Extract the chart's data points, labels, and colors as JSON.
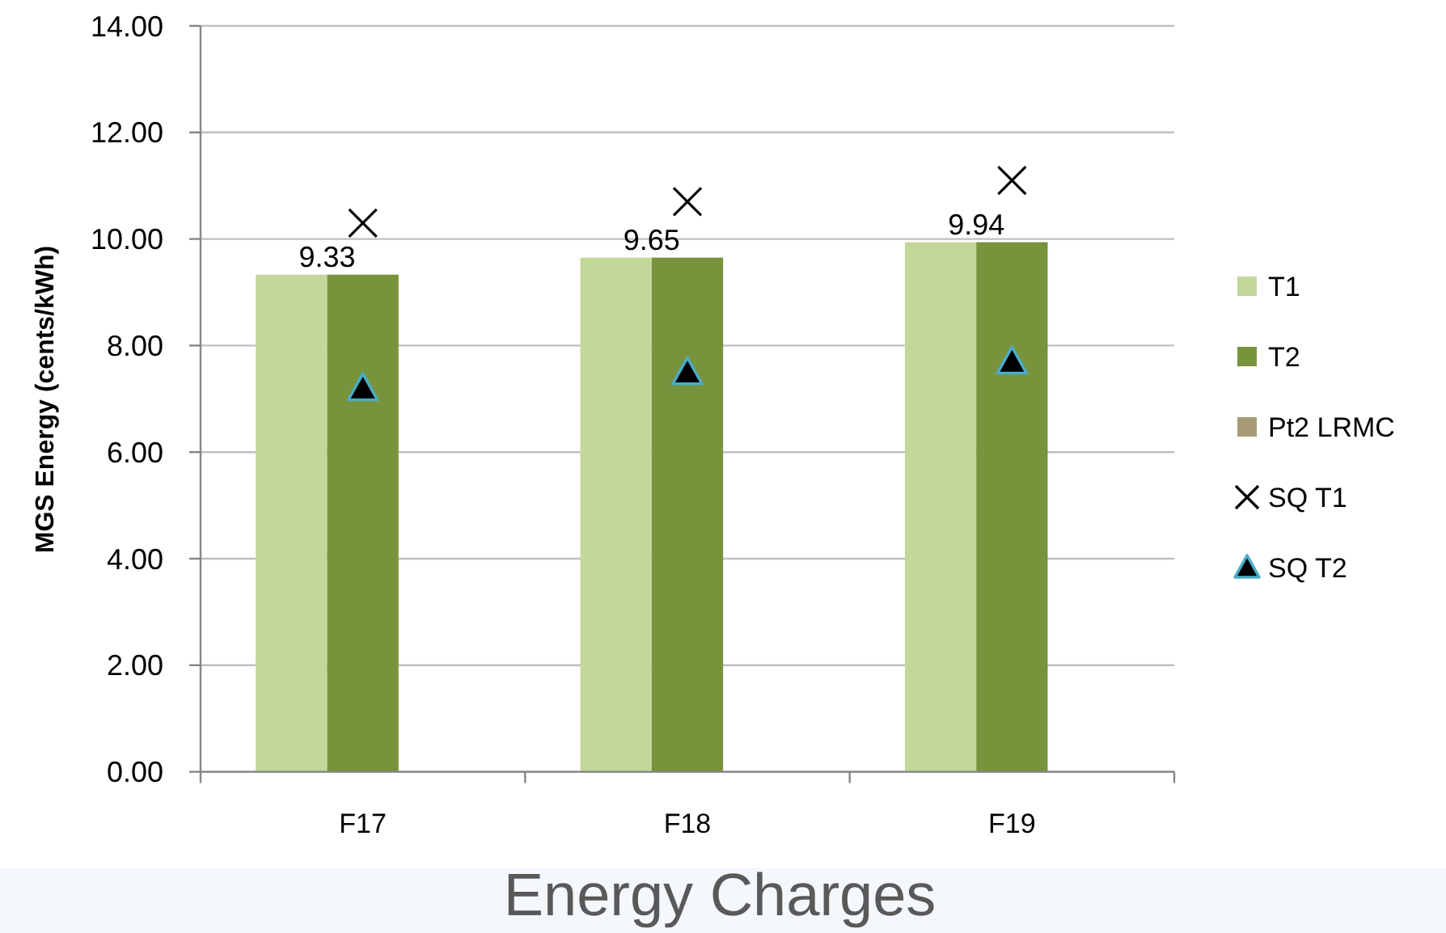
{
  "chart_data": {
    "type": "bar",
    "xlabel": "Energy Charges",
    "ylabel": "MGS Energy (cents/kWh)",
    "categories": [
      "F17",
      "F18",
      "F19"
    ],
    "series": [
      {
        "name": "T1",
        "color": "#c4d79b",
        "values": [
          9.33,
          9.65,
          9.94
        ],
        "value_labels": [
          "9.33",
          "9.65",
          "9.94"
        ]
      },
      {
        "name": "T2",
        "color": "#77933c",
        "values": [
          9.33,
          9.65,
          9.94
        ]
      },
      {
        "name": "Pt2 LRMC",
        "color": "#a89c78",
        "values": [
          null,
          null,
          null
        ]
      },
      {
        "name": "SQ T1",
        "type": "scatter",
        "marker": "cross",
        "color": "#000000",
        "values": [
          10.3,
          10.7,
          11.1
        ]
      },
      {
        "name": "SQ T2",
        "type": "scatter",
        "marker": "triangle",
        "color": "#000000",
        "values": [
          7.2,
          7.5,
          7.7
        ]
      }
    ],
    "ylim": [
      0,
      14
    ],
    "yticks": [
      {
        "value": 0,
        "label": "0.00"
      },
      {
        "value": 2,
        "label": "2.00"
      },
      {
        "value": 4,
        "label": "4.00"
      },
      {
        "value": 6,
        "label": "6.00"
      },
      {
        "value": 8,
        "label": "8.00"
      },
      {
        "value": 10,
        "label": "10.00"
      },
      {
        "value": 12,
        "label": "12.00"
      },
      {
        "value": 14,
        "label": "14.00"
      }
    ],
    "grid": "y",
    "legend": "right"
  }
}
